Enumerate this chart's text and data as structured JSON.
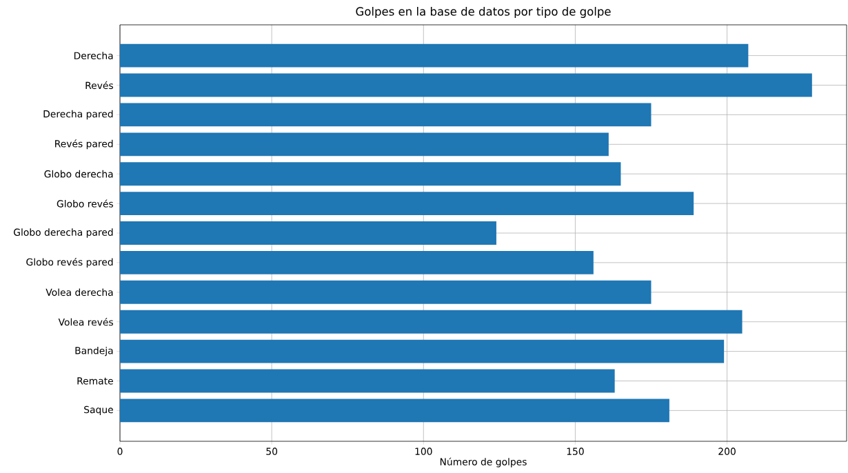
{
  "chart_data": {
    "type": "bar",
    "orientation": "horizontal",
    "title": "Golpes en la base de datos por tipo de golpe",
    "xlabel": "Número de golpes",
    "categories": [
      "Derecha",
      "Revés",
      "Derecha pared",
      "Revés pared",
      "Globo derecha",
      "Globo revés",
      "Globo derecha pared",
      "Globo revés pared",
      "Volea derecha",
      "Volea revés",
      "Bandeja",
      "Remate",
      "Saque"
    ],
    "values": [
      207,
      228,
      175,
      161,
      165,
      189,
      124,
      156,
      175,
      205,
      199,
      163,
      181
    ],
    "color": "#1f77b4",
    "xlim": [
      0,
      239.4
    ],
    "xticks": [
      0,
      50,
      100,
      150,
      200
    ],
    "grid": true
  }
}
